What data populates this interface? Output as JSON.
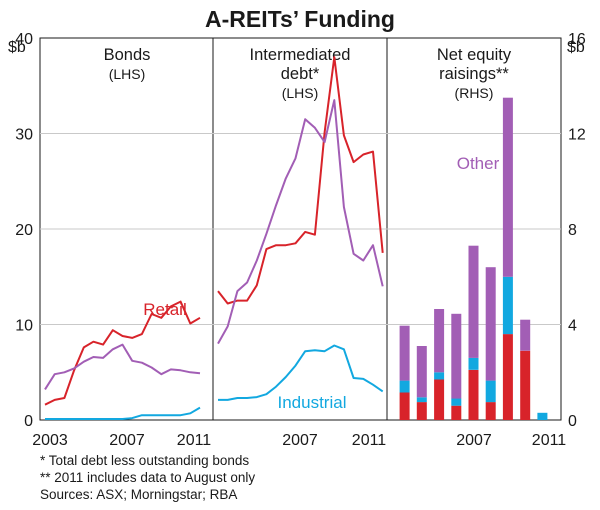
{
  "title": "A-REITs’ Funding",
  "axis": {
    "left_unit": "$b",
    "right_unit": "$b",
    "left_ticks": [
      "0",
      "10",
      "20",
      "30",
      "40"
    ],
    "right_ticks": [
      "0",
      "4",
      "8",
      "12",
      "16"
    ]
  },
  "notes": [
    "*  Total debt less outstanding bonds",
    "** 2011 includes data to August only",
    "Sources: ASX; Morningstar; RBA"
  ],
  "colors": {
    "retail": "#d8232a",
    "industrial": "#12a8e0",
    "other": "#a25eb5"
  },
  "chart_data": [
    {
      "type": "line",
      "title": "Bonds",
      "subtitle": "(LHS)",
      "x_ticks": [
        "2003",
        "2007",
        "2011"
      ],
      "xlim": [
        2003,
        2011
      ],
      "ylim": [
        0,
        40
      ],
      "series": [
        {
          "name": "Retail",
          "color": "#d8232a",
          "points": [
            [
              2003.0,
              1.6
            ],
            [
              2003.5,
              2.1
            ],
            [
              2004.0,
              2.3
            ],
            [
              2004.5,
              5.2
            ],
            [
              2005.0,
              7.6
            ],
            [
              2005.5,
              8.2
            ],
            [
              2006.0,
              7.9
            ],
            [
              2006.5,
              9.4
            ],
            [
              2007.0,
              8.8
            ],
            [
              2007.5,
              8.6
            ],
            [
              2008.0,
              9.0
            ],
            [
              2008.5,
              11.1
            ],
            [
              2009.0,
              10.7
            ],
            [
              2009.5,
              11.9
            ],
            [
              2010.0,
              12.4
            ],
            [
              2010.5,
              10.1
            ],
            [
              2011.0,
              10.7
            ]
          ]
        },
        {
          "name": "",
          "color": "#a25eb5",
          "points": [
            [
              2003.0,
              3.2
            ],
            [
              2003.5,
              4.8
            ],
            [
              2004.0,
              5.0
            ],
            [
              2004.5,
              5.4
            ],
            [
              2005.0,
              6.1
            ],
            [
              2005.5,
              6.6
            ],
            [
              2006.0,
              6.5
            ],
            [
              2006.5,
              7.4
            ],
            [
              2007.0,
              7.9
            ],
            [
              2007.5,
              6.2
            ],
            [
              2008.0,
              6.0
            ],
            [
              2008.5,
              5.5
            ],
            [
              2009.0,
              4.8
            ],
            [
              2009.5,
              5.3
            ],
            [
              2010.0,
              5.2
            ],
            [
              2010.5,
              5.0
            ],
            [
              2011.0,
              4.9
            ]
          ]
        },
        {
          "name": "",
          "color": "#12a8e0",
          "points": [
            [
              2003.0,
              0.1
            ],
            [
              2003.5,
              0.1
            ],
            [
              2004.0,
              0.1
            ],
            [
              2004.5,
              0.1
            ],
            [
              2005.0,
              0.1
            ],
            [
              2005.5,
              0.1
            ],
            [
              2006.0,
              0.1
            ],
            [
              2006.5,
              0.1
            ],
            [
              2007.0,
              0.1
            ],
            [
              2007.5,
              0.2
            ],
            [
              2008.0,
              0.5
            ],
            [
              2008.5,
              0.5
            ],
            [
              2009.0,
              0.5
            ],
            [
              2009.5,
              0.5
            ],
            [
              2010.0,
              0.5
            ],
            [
              2010.5,
              0.7
            ],
            [
              2011.0,
              1.3
            ]
          ]
        }
      ]
    },
    {
      "type": "line",
      "title": "Intermediated debt*",
      "subtitle": "(LHS)",
      "x_ticks": [
        "2007",
        "2011"
      ],
      "xlim": [
        2003,
        2011
      ],
      "ylim": [
        0,
        40
      ],
      "series": [
        {
          "name": "",
          "color": "#d8232a",
          "points": [
            [
              2003.0,
              13.5
            ],
            [
              2003.5,
              12.2
            ],
            [
              2004.0,
              12.5
            ],
            [
              2004.5,
              12.5
            ],
            [
              2005.0,
              14.1
            ],
            [
              2005.5,
              17.9
            ],
            [
              2006.0,
              18.3
            ],
            [
              2006.5,
              18.3
            ],
            [
              2007.0,
              18.5
            ],
            [
              2007.5,
              19.7
            ],
            [
              2008.0,
              19.4
            ],
            [
              2008.5,
              30.1
            ],
            [
              2009.0,
              38.0
            ],
            [
              2009.5,
              29.8
            ],
            [
              2010.0,
              27.0
            ],
            [
              2010.5,
              27.8
            ],
            [
              2011.0,
              28.1
            ],
            [
              2011.5,
              17.5
            ]
          ]
        },
        {
          "name": "",
          "color": "#a25eb5",
          "points": [
            [
              2003.0,
              8.0
            ],
            [
              2003.5,
              9.8
            ],
            [
              2004.0,
              13.5
            ],
            [
              2004.5,
              14.4
            ],
            [
              2005.0,
              16.7
            ],
            [
              2005.5,
              19.5
            ],
            [
              2006.0,
              22.5
            ],
            [
              2006.5,
              25.3
            ],
            [
              2007.0,
              27.4
            ],
            [
              2007.5,
              31.5
            ],
            [
              2008.0,
              30.6
            ],
            [
              2008.5,
              29.1
            ],
            [
              2009.0,
              33.5
            ],
            [
              2009.5,
              22.3
            ],
            [
              2010.0,
              17.4
            ],
            [
              2010.5,
              16.7
            ],
            [
              2011.0,
              18.3
            ],
            [
              2011.5,
              14.0
            ]
          ]
        },
        {
          "name": "Industrial",
          "color": "#12a8e0",
          "points": [
            [
              2003.0,
              2.1
            ],
            [
              2003.5,
              2.1
            ],
            [
              2004.0,
              2.3
            ],
            [
              2004.5,
              2.3
            ],
            [
              2005.0,
              2.4
            ],
            [
              2005.5,
              2.7
            ],
            [
              2006.0,
              3.5
            ],
            [
              2006.5,
              4.5
            ],
            [
              2007.0,
              5.7
            ],
            [
              2007.5,
              7.2
            ],
            [
              2008.0,
              7.3
            ],
            [
              2008.5,
              7.2
            ],
            [
              2009.0,
              7.8
            ],
            [
              2009.5,
              7.4
            ],
            [
              2010.0,
              4.4
            ],
            [
              2010.5,
              4.3
            ],
            [
              2011.0,
              3.7
            ],
            [
              2011.5,
              3.0
            ]
          ]
        }
      ]
    },
    {
      "type": "bar",
      "title": "Net equity raisings**",
      "subtitle": "(RHS)",
      "x_ticks": [
        "2007",
        "2011"
      ],
      "xlim": [
        2002.5,
        2011.5
      ],
      "ylim": [
        0,
        16
      ],
      "categories": [
        2003,
        2004,
        2005,
        2006,
        2007,
        2008,
        2009,
        2010,
        2011
      ],
      "series": [
        {
          "name": "Retail",
          "color": "#d8232a",
          "values": [
            1.15,
            0.75,
            1.7,
            0.6,
            2.1,
            0.75,
            3.6,
            2.9,
            0.0
          ]
        },
        {
          "name": "Industrial",
          "color": "#12a8e0",
          "values": [
            0.5,
            0.2,
            0.3,
            0.3,
            0.5,
            0.9,
            2.4,
            0.0,
            0.3
          ]
        },
        {
          "name": "Other",
          "color": "#a25eb5",
          "values": [
            2.3,
            2.15,
            2.65,
            3.55,
            4.7,
            4.75,
            7.5,
            1.3,
            0.0
          ]
        }
      ]
    }
  ]
}
